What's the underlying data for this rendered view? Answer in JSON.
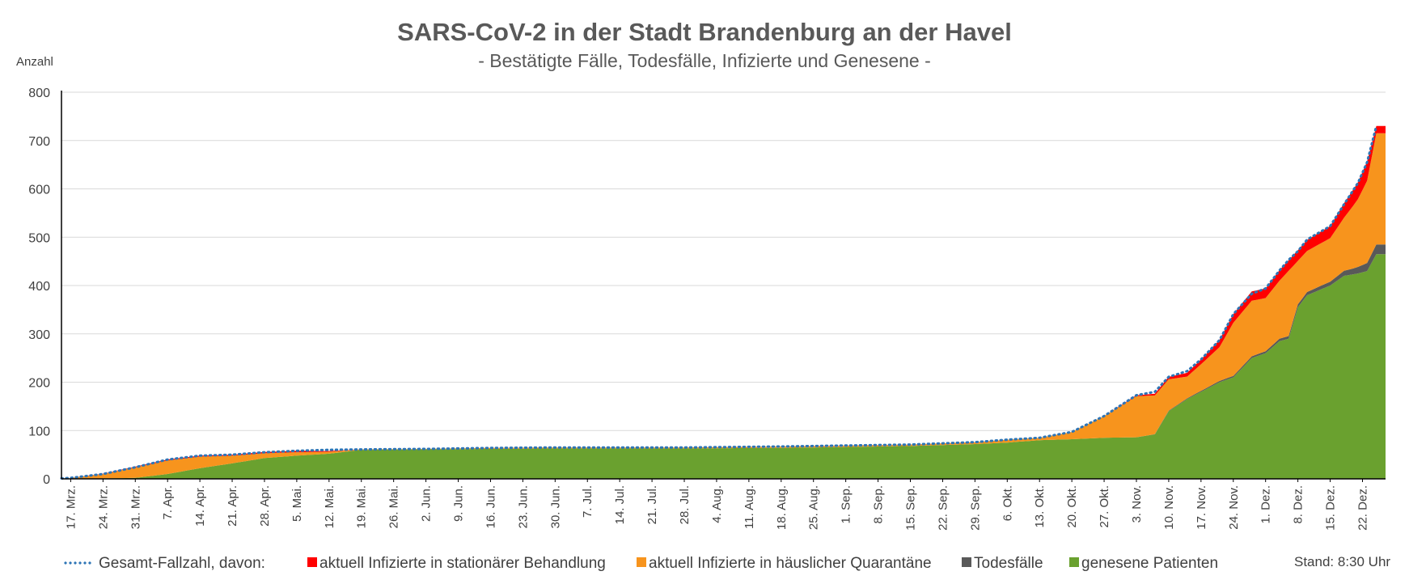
{
  "chart_data": {
    "type": "area",
    "title": "SARS-CoV-2 in der Stadt Brandenburg an der Havel",
    "subtitle": "- Bestätigte Fälle, Todesfälle, Infizierte und Genesene -",
    "ylabel": "Anzahl",
    "ylim": [
      0,
      800
    ],
    "yticks": [
      0,
      100,
      200,
      300,
      400,
      500,
      600,
      700,
      800
    ],
    "grid": true,
    "legend_position": "bottom",
    "stand": "Stand: 8:30 Uhr",
    "x_range": [
      "2020-03-15",
      "2020-12-27"
    ],
    "x_tick_dates": [
      "2020-03-17",
      "2020-03-24",
      "2020-03-31",
      "2020-04-07",
      "2020-04-14",
      "2020-04-21",
      "2020-04-28",
      "2020-05-05",
      "2020-05-12",
      "2020-05-19",
      "2020-05-26",
      "2020-06-02",
      "2020-06-09",
      "2020-06-16",
      "2020-06-23",
      "2020-06-30",
      "2020-07-07",
      "2020-07-14",
      "2020-07-21",
      "2020-07-28",
      "2020-08-04",
      "2020-08-11",
      "2020-08-18",
      "2020-08-25",
      "2020-09-01",
      "2020-09-08",
      "2020-09-15",
      "2020-09-22",
      "2020-09-29",
      "2020-10-06",
      "2020-10-13",
      "2020-10-20",
      "2020-10-27",
      "2020-11-03",
      "2020-11-10",
      "2020-11-17",
      "2020-11-24",
      "2020-12-01",
      "2020-12-08",
      "2020-12-15",
      "2020-12-22"
    ],
    "x_tick_labels": [
      "17. Mrz.",
      "24. Mrz.",
      "31. Mrz.",
      "7. Apr.",
      "14. Apr.",
      "21. Apr.",
      "28. Apr.",
      "5. Mai.",
      "12. Mai.",
      "19. Mai.",
      "26. Mai.",
      "2. Jun.",
      "9. Jun.",
      "16. Jun.",
      "23. Jun.",
      "30. Jun.",
      "7. Jul.",
      "14. Jul.",
      "21. Jul.",
      "28. Jul.",
      "4. Aug.",
      "11. Aug.",
      "18. Aug.",
      "25. Aug.",
      "1. Sep.",
      "8. Sep.",
      "15. Sep.",
      "22. Sep.",
      "29. Sep.",
      "6. Okt.",
      "13. Okt.",
      "20. Okt.",
      "27. Okt.",
      "3. Nov.",
      "10. Nov.",
      "17. Nov.",
      "24. Nov.",
      "1. Dez.",
      "8. Dez.",
      "15. Dez.",
      "22. Dez."
    ],
    "series": [
      {
        "name": "genesene Patienten",
        "color": "#6aa12f",
        "x": [
          "2020-03-17",
          "2020-03-24",
          "2020-03-31",
          "2020-04-07",
          "2020-04-14",
          "2020-04-21",
          "2020-04-28",
          "2020-05-05",
          "2020-05-12",
          "2020-05-19",
          "2020-06-02",
          "2020-06-16",
          "2020-06-30",
          "2020-07-28",
          "2020-08-18",
          "2020-09-01",
          "2020-09-15",
          "2020-09-29",
          "2020-10-06",
          "2020-10-13",
          "2020-10-20",
          "2020-10-27",
          "2020-11-03",
          "2020-11-07",
          "2020-11-10",
          "2020-11-14",
          "2020-11-17",
          "2020-11-21",
          "2020-11-24",
          "2020-11-28",
          "2020-12-01",
          "2020-12-04",
          "2020-12-06",
          "2020-12-08",
          "2020-12-10",
          "2020-12-15",
          "2020-12-18",
          "2020-12-21",
          "2020-12-23",
          "2020-12-25"
        ],
        "values": [
          0,
          1,
          2,
          10,
          22,
          32,
          43,
          48,
          52,
          60,
          61,
          62,
          63,
          63,
          64,
          66,
          68,
          72,
          75,
          80,
          82,
          85,
          86,
          92,
          140,
          165,
          180,
          200,
          210,
          250,
          260,
          285,
          290,
          355,
          380,
          400,
          420,
          425,
          430,
          465
        ]
      },
      {
        "name": "Todesfälle",
        "color": "#595959",
        "x": [
          "2020-03-17",
          "2020-11-03",
          "2020-11-10",
          "2020-11-17",
          "2020-11-24",
          "2020-12-01",
          "2020-12-08",
          "2020-12-15",
          "2020-12-20",
          "2020-12-22",
          "2020-12-25"
        ],
        "values": [
          0,
          0,
          1,
          2,
          3,
          4,
          6,
          8,
          12,
          15,
          20
        ]
      },
      {
        "name": "aktuell Infizierte in häuslicher Quarantäne",
        "color": "#f7941d",
        "x": [
          "2020-03-17",
          "2020-03-24",
          "2020-03-31",
          "2020-04-07",
          "2020-04-14",
          "2020-04-21",
          "2020-04-28",
          "2020-05-05",
          "2020-05-12",
          "2020-05-19",
          "2020-06-02",
          "2020-06-16",
          "2020-06-30",
          "2020-07-28",
          "2020-08-18",
          "2020-09-01",
          "2020-09-15",
          "2020-09-29",
          "2020-10-06",
          "2020-10-13",
          "2020-10-20",
          "2020-10-27",
          "2020-11-03",
          "2020-11-07",
          "2020-11-10",
          "2020-11-14",
          "2020-11-17",
          "2020-11-21",
          "2020-11-24",
          "2020-11-28",
          "2020-12-01",
          "2020-12-04",
          "2020-12-06",
          "2020-12-08",
          "2020-12-10",
          "2020-12-15",
          "2020-12-18",
          "2020-12-21",
          "2020-12-23",
          "2020-12-25"
        ],
        "values": [
          2,
          9,
          22,
          28,
          24,
          16,
          10,
          7,
          4,
          1,
          1,
          2,
          2,
          2,
          3,
          3,
          3,
          4,
          6,
          5,
          15,
          45,
          85,
          80,
          65,
          45,
          55,
          70,
          110,
          115,
          110,
          120,
          135,
          90,
          85,
          90,
          110,
          140,
          170,
          230
        ]
      },
      {
        "name": "aktuell Infizierte in stationärer Behandlung",
        "color": "#ff0000",
        "x": [
          "2020-03-17",
          "2020-04-07",
          "2020-04-21",
          "2020-05-05",
          "2020-05-19",
          "2020-10-27",
          "2020-11-03",
          "2020-11-10",
          "2020-11-17",
          "2020-11-21",
          "2020-11-24",
          "2020-12-01",
          "2020-12-04",
          "2020-12-08",
          "2020-12-15",
          "2020-12-18",
          "2020-12-21",
          "2020-12-23",
          "2020-12-25"
        ],
        "values": [
          0,
          2,
          2,
          3,
          0,
          0,
          2,
          5,
          10,
          15,
          18,
          20,
          22,
          22,
          25,
          30,
          35,
          40,
          15
        ]
      }
    ],
    "total": {
      "name": "Gesamt-Fallzahl, davon:",
      "color": "#2e75b6",
      "style": "dotted",
      "x": [
        "2020-03-15",
        "2020-03-17",
        "2020-03-24",
        "2020-03-31",
        "2020-04-07",
        "2020-04-14",
        "2020-04-21",
        "2020-04-28",
        "2020-05-05",
        "2020-05-12",
        "2020-05-19",
        "2020-06-02",
        "2020-06-16",
        "2020-06-30",
        "2020-07-28",
        "2020-08-18",
        "2020-09-01",
        "2020-09-15",
        "2020-09-29",
        "2020-10-06",
        "2020-10-13",
        "2020-10-20",
        "2020-10-27",
        "2020-11-03",
        "2020-11-07",
        "2020-11-10",
        "2020-11-14",
        "2020-11-17",
        "2020-11-21",
        "2020-11-24",
        "2020-11-28",
        "2020-12-01",
        "2020-12-04",
        "2020-12-06",
        "2020-12-08",
        "2020-12-10",
        "2020-12-15",
        "2020-12-18",
        "2020-12-21",
        "2020-12-23",
        "2020-12-25"
      ],
      "values": [
        1,
        2,
        10,
        24,
        40,
        48,
        50,
        55,
        58,
        60,
        61,
        62,
        64,
        65,
        65,
        67,
        69,
        71,
        76,
        81,
        85,
        97,
        130,
        173,
        180,
        211,
        223,
        247,
        287,
        341,
        383,
        394,
        431,
        453,
        471,
        495,
        523,
        568,
        612,
        655,
        730
      ]
    }
  },
  "legend_order": [
    "Gesamt-Fallzahl, davon:",
    "aktuell Infizierte in stationärer Behandlung",
    "aktuell Infizierte in häuslicher Quarantäne",
    "Todesfälle",
    "genesene Patienten"
  ]
}
